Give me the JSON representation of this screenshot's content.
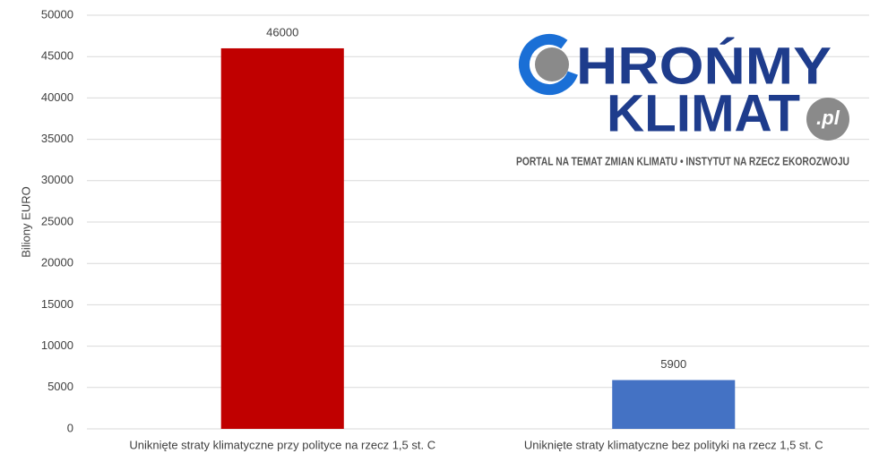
{
  "chart_data": {
    "type": "bar",
    "y_label": "Biliony EURO",
    "categories": [
      "Uniknięte straty klimatyczne przy polityce na rzecz 1,5 st. C",
      "Uniknięte straty klimatyczne bez polityki na rzecz 1,5 st. C"
    ],
    "values": [
      46000,
      5900
    ],
    "colors": [
      "#c00000",
      "#4472c4"
    ],
    "ylim": [
      0,
      50000
    ],
    "yticks": [
      0,
      5000,
      10000,
      15000,
      20000,
      25000,
      30000,
      35000,
      40000,
      45000,
      50000
    ],
    "grid": true,
    "logo": {
      "first_letter": "C",
      "line1_rest": "HROŃMY",
      "line2": "KLIMAT",
      "suffix": ".pl",
      "tagline": "PORTAL NA TEMAT ZMIAN KLIMATU • INSTYTUT NA RZECZ EKOROZWOJU"
    }
  }
}
